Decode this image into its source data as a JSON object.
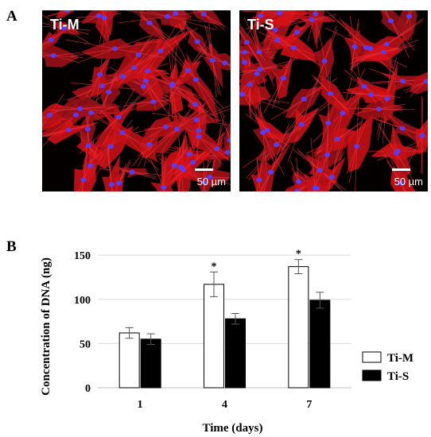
{
  "panels": {
    "a_letter": "A",
    "b_letter": "B"
  },
  "images": [
    {
      "label": "Ti-M",
      "scale_label": "50 µm"
    },
    {
      "label": "Ti-S",
      "scale_label": "50 µm"
    }
  ],
  "chart_data": {
    "type": "bar",
    "categories": [
      "1",
      "4",
      "7"
    ],
    "series": [
      {
        "name": "Ti-M",
        "values": [
          62,
          117,
          137
        ],
        "errors": [
          6,
          14,
          8
        ],
        "fill": "#ffffff"
      },
      {
        "name": "Ti-S",
        "values": [
          55,
          78,
          99
        ],
        "errors": [
          6,
          6,
          9
        ],
        "fill": "#000000"
      }
    ],
    "significance": [
      "",
      "*",
      "*"
    ],
    "xlabel": "Time (days)",
    "ylabel": "Concentration of DNA (ng)",
    "yticks": [
      0,
      50,
      100,
      150
    ],
    "ylim": [
      0,
      160
    ],
    "grid": true,
    "legend_position": "right"
  },
  "colors": {
    "cytoskeleton": "#c0141a",
    "nuclei": "#5a3cf0",
    "background": "#050000"
  }
}
